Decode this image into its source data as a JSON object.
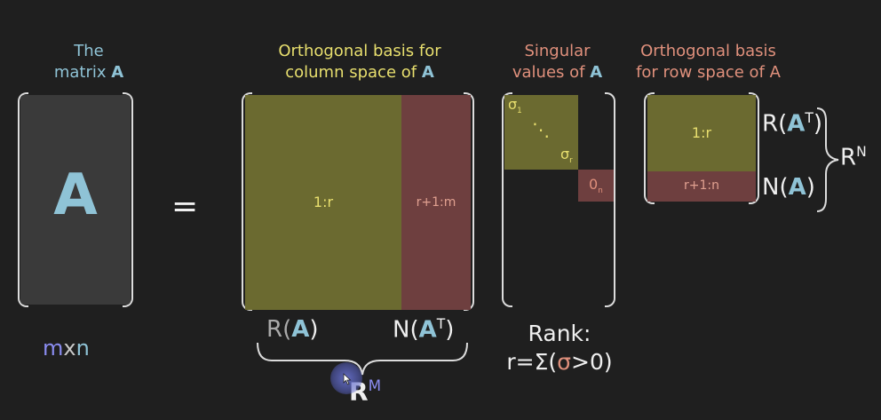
{
  "headers": {
    "matrix": {
      "line1": "The",
      "line2a": "matrix ",
      "line2b": "A"
    },
    "colspace": {
      "line1": "Orthogonal basis for",
      "line2a": "column space of ",
      "line2b": "A"
    },
    "singular": {
      "line1": "Singular",
      "line2a": "values of ",
      "line2b": "A"
    },
    "rowspace": {
      "line1": "Orthogonal basis",
      "line2": "for row space of A"
    }
  },
  "matrix_letter": "A",
  "equals": "=",
  "dims": {
    "m": "m",
    "x": "x",
    "n": "n"
  },
  "U": {
    "left_label": "1:r",
    "right_label": "r+1:m",
    "bottom_left_a": "R(",
    "bottom_left_b": "A",
    "bottom_left_c": ")",
    "bottom_right_a": "N(",
    "bottom_right_b": "A",
    "bottom_right_sup": "T",
    "bottom_right_c": ")",
    "space": "R",
    "space_sup": "M"
  },
  "S": {
    "sigma1": "σ",
    "sigma1_sub": "1",
    "dots": "⋱",
    "sigmar": "σ",
    "sigmar_sub": "r",
    "zero": "0",
    "zero_sub": "n"
  },
  "V": {
    "top_label": "1:r",
    "bottom_label": "r+1:n",
    "right_top_a": "R(",
    "right_top_b": "A",
    "right_top_sup": "T",
    "right_top_c": ")",
    "right_bottom_a": "N(",
    "right_bottom_b": "A",
    "right_bottom_c": ")",
    "space": "R",
    "space_sup": "N"
  },
  "rank": {
    "line1": "Rank:",
    "line2a": "r=Σ(",
    "line2b": "σ",
    "line2c": ">0)"
  },
  "colors": {
    "olive": "#6b6a30",
    "maroon": "#6e3f3f",
    "blue": "#8fc3d6",
    "yellow": "#e8df6e",
    "salmon": "#e0907c"
  }
}
